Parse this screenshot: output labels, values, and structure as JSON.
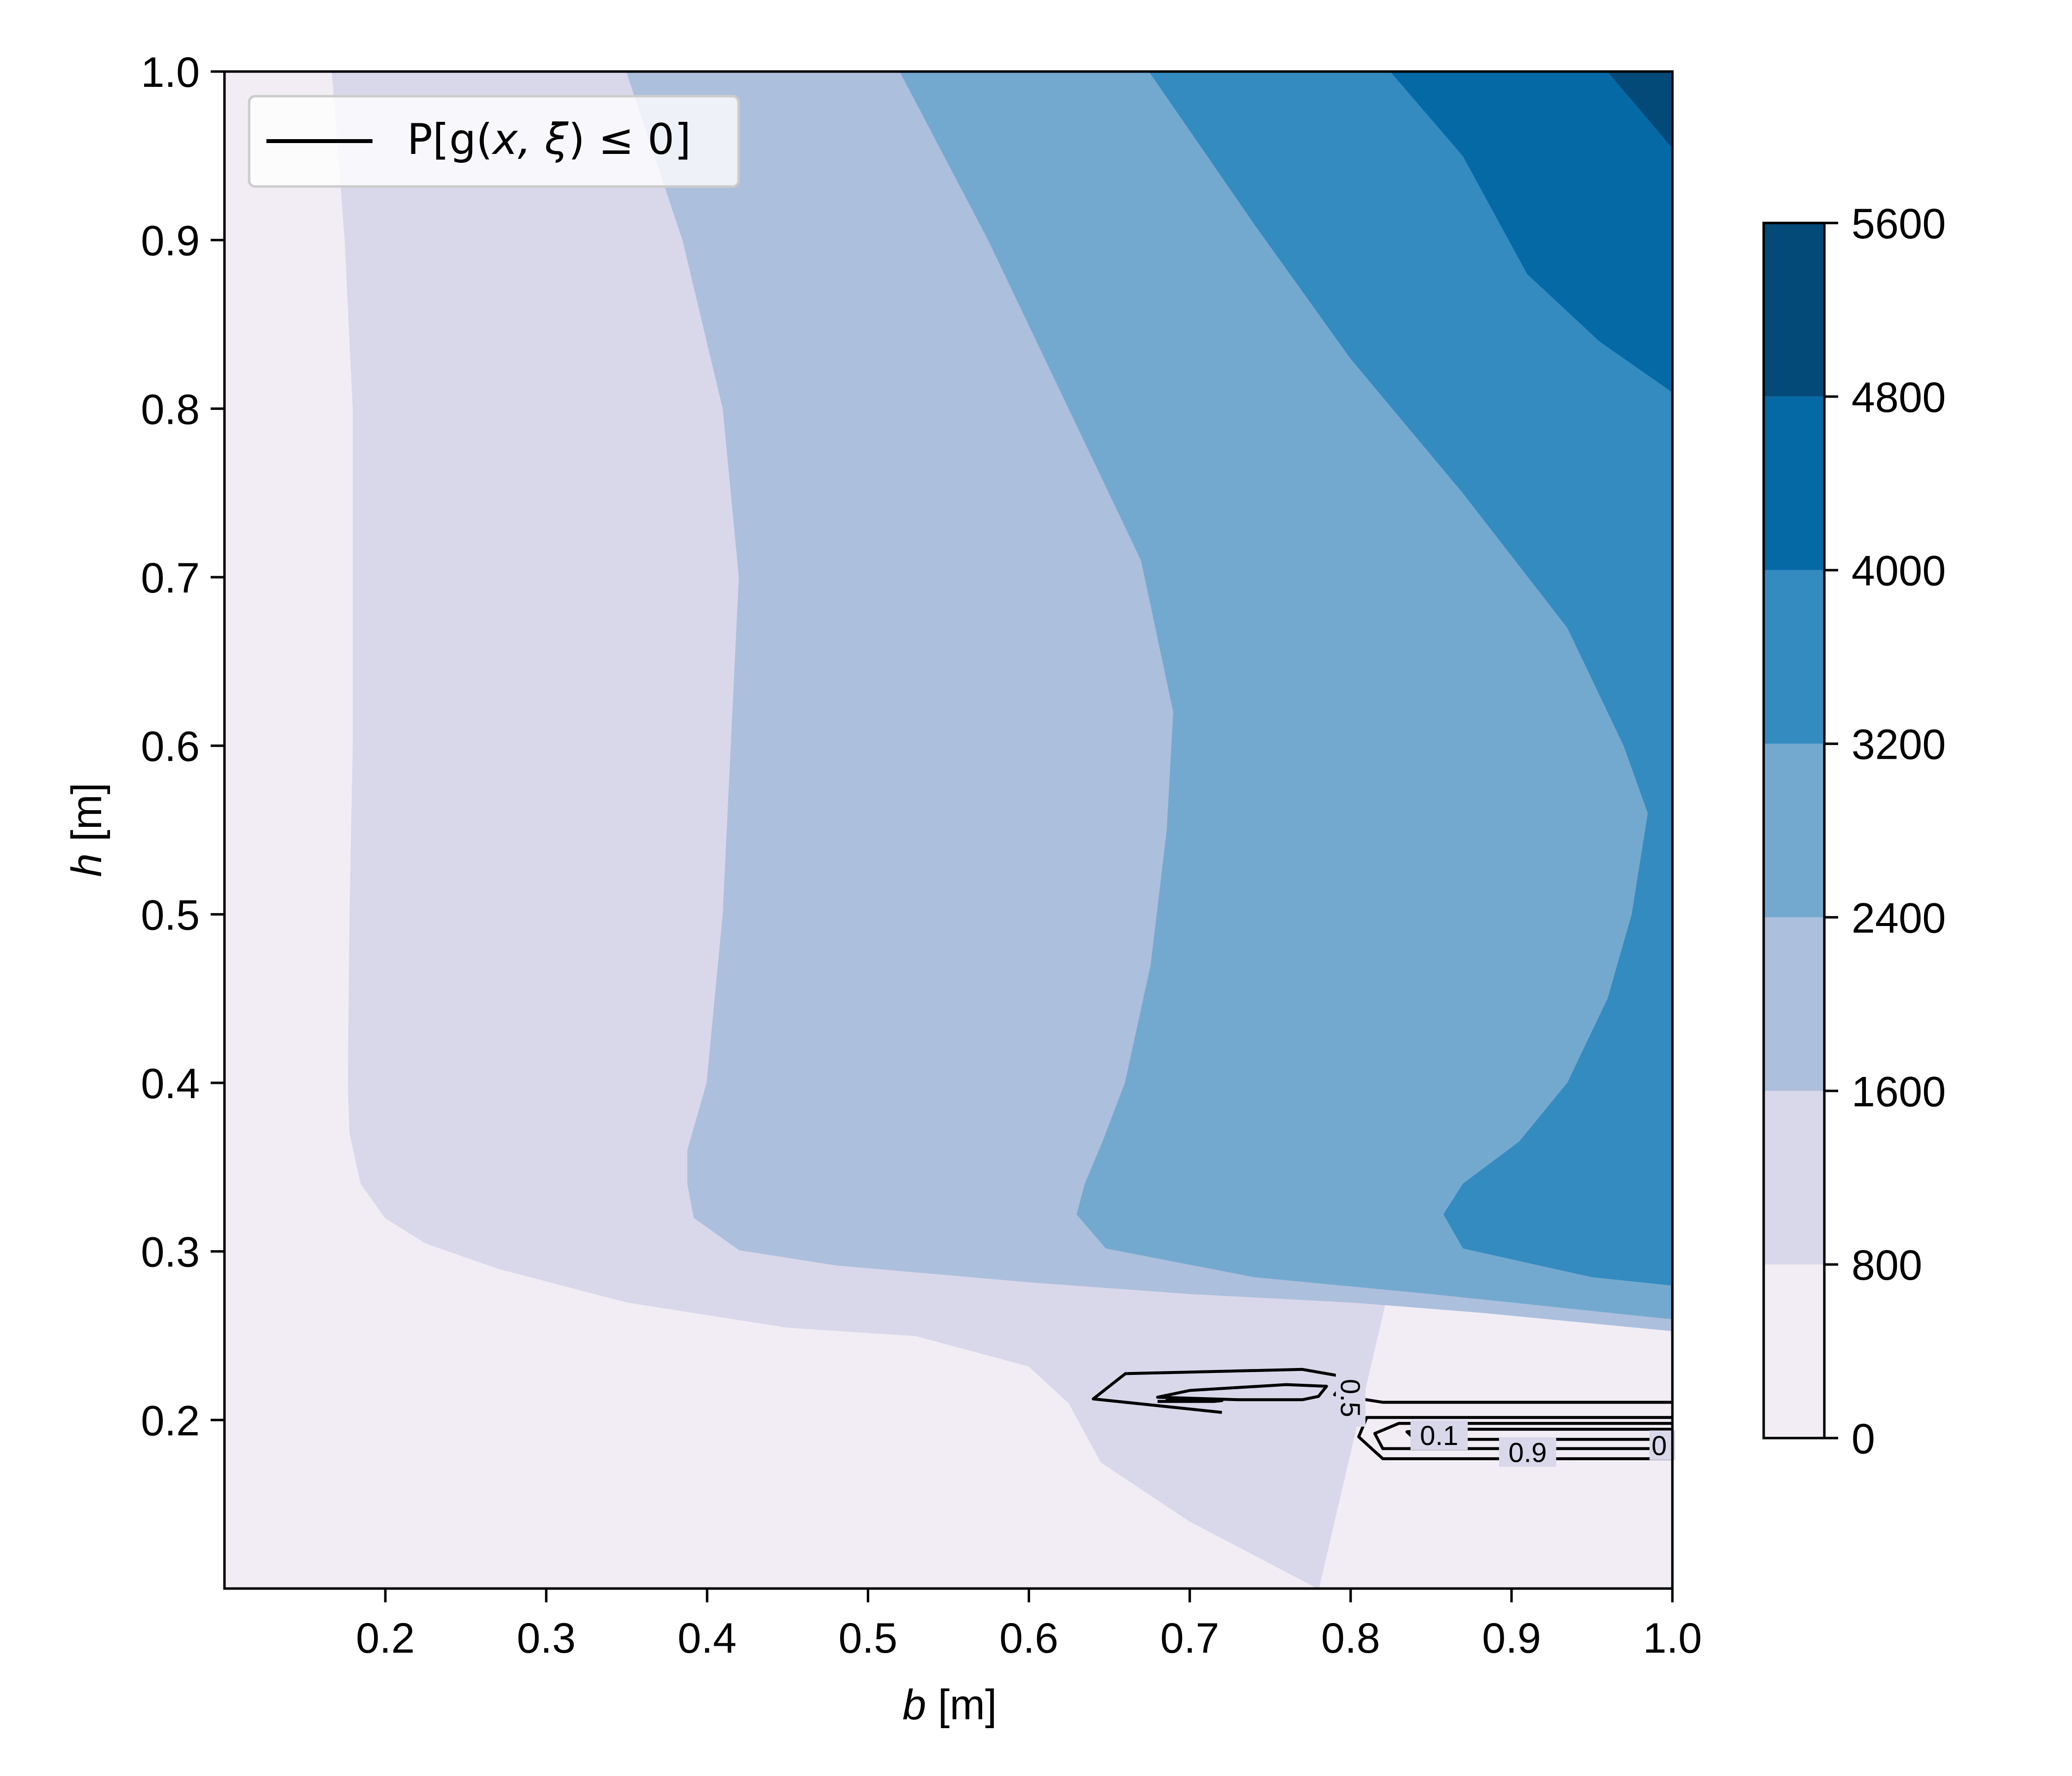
{
  "chart_data": {
    "type": "contourf",
    "xlabel_var": "b",
    "xlabel_unit": "[m]",
    "ylabel_var": "h",
    "ylabel_unit": "[m]",
    "xlim": [
      0.1,
      1.0
    ],
    "ylim": [
      0.1,
      1.0
    ],
    "xticks": [
      0.2,
      0.3,
      0.4,
      0.5,
      0.6,
      0.7,
      0.8,
      0.9,
      1.0
    ],
    "xtick_labels": [
      "0.2",
      "0.3",
      "0.4",
      "0.5",
      "0.6",
      "0.7",
      "0.8",
      "0.9",
      "1.0"
    ],
    "yticks": [
      0.2,
      0.3,
      0.4,
      0.5,
      0.6,
      0.7,
      0.8,
      0.9,
      1.0
    ],
    "ytick_labels": [
      "0.2",
      "0.3",
      "0.4",
      "0.5",
      "0.6",
      "0.7",
      "0.8",
      "0.9",
      "1.0"
    ],
    "colorbar": {
      "levels": [
        0,
        800,
        1600,
        2400,
        3200,
        4000,
        4800,
        5600
      ],
      "labels": [
        "0",
        "800",
        "1600",
        "2400",
        "3200",
        "4000",
        "4800",
        "5600"
      ],
      "colors": [
        "#f2edf5",
        "#d9d8ea",
        "#acbfdd",
        "#74a9cf",
        "#348bc0",
        "#0569a6",
        "#034a78"
      ]
    },
    "contour_band_boundaries": [
      {
        "level": 800,
        "points": [
          [
            0.167,
            1.0
          ],
          [
            0.175,
            0.9
          ],
          [
            0.18,
            0.8
          ],
          [
            0.18,
            0.7
          ],
          [
            0.18,
            0.6
          ],
          [
            0.178,
            0.5
          ],
          [
            0.177,
            0.4
          ],
          [
            0.178,
            0.37
          ],
          [
            0.185,
            0.34
          ],
          [
            0.2,
            0.32
          ],
          [
            0.225,
            0.305
          ],
          [
            0.27,
            0.29
          ],
          [
            0.35,
            0.27
          ],
          [
            0.45,
            0.255
          ],
          [
            0.53,
            0.25
          ],
          [
            0.6,
            0.232
          ],
          [
            0.625,
            0.21
          ],
          [
            0.645,
            0.175
          ],
          [
            0.7,
            0.14
          ],
          [
            0.78,
            0.1
          ]
        ]
      },
      {
        "level": 1600,
        "points": [
          [
            0.35,
            1.0
          ],
          [
            0.385,
            0.9
          ],
          [
            0.41,
            0.8
          ],
          [
            0.42,
            0.7
          ],
          [
            0.415,
            0.6
          ],
          [
            0.41,
            0.5
          ],
          [
            0.4,
            0.4
          ],
          [
            0.388,
            0.36
          ],
          [
            0.388,
            0.34
          ],
          [
            0.392,
            0.32
          ],
          [
            0.42,
            0.301
          ],
          [
            0.48,
            0.292
          ],
          [
            0.6,
            0.282
          ],
          [
            0.7,
            0.275
          ],
          [
            0.8,
            0.27
          ],
          [
            0.88,
            0.264
          ],
          [
            1.0,
            0.253
          ]
        ]
      },
      {
        "level": 2400,
        "points": [
          [
            0.52,
            1.0
          ],
          [
            0.575,
            0.9
          ],
          [
            0.625,
            0.8
          ],
          [
            0.67,
            0.71
          ],
          [
            0.69,
            0.62
          ],
          [
            0.686,
            0.55
          ],
          [
            0.676,
            0.47
          ],
          [
            0.66,
            0.4
          ],
          [
            0.646,
            0.365
          ],
          [
            0.635,
            0.34
          ],
          [
            0.63,
            0.322
          ],
          [
            0.648,
            0.302
          ],
          [
            0.74,
            0.285
          ],
          [
            0.85,
            0.275
          ],
          [
            0.95,
            0.265
          ],
          [
            1.0,
            0.26
          ]
        ]
      },
      {
        "level": 3200,
        "points": [
          [
            0.675,
            1.0
          ],
          [
            0.74,
            0.91
          ],
          [
            0.8,
            0.83
          ],
          [
            0.87,
            0.75
          ],
          [
            0.935,
            0.67
          ],
          [
            0.97,
            0.6
          ],
          [
            0.985,
            0.56
          ],
          [
            0.975,
            0.5
          ],
          [
            0.96,
            0.45
          ],
          [
            0.935,
            0.4
          ],
          [
            0.905,
            0.365
          ],
          [
            0.87,
            0.34
          ],
          [
            0.858,
            0.322
          ],
          [
            0.87,
            0.302
          ],
          [
            0.95,
            0.285
          ],
          [
            1.0,
            0.28
          ]
        ]
      },
      {
        "level": 4000,
        "points": [
          [
            0.825,
            1.0
          ],
          [
            0.87,
            0.95
          ],
          [
            0.91,
            0.88
          ],
          [
            0.955,
            0.84
          ],
          [
            1.0,
            0.81
          ]
        ]
      },
      {
        "level": 4800,
        "points": [
          [
            0.96,
            1.0
          ],
          [
            1.0,
            0.955
          ]
        ]
      }
    ],
    "failure_probability_contours": [
      {
        "level": 0.5,
        "label": "0.5",
        "points": [
          [
            0.72,
            0.2045
          ],
          [
            0.64,
            0.2125
          ],
          [
            0.66,
            0.2275
          ],
          [
            0.77,
            0.23
          ],
          [
            0.8,
            0.225
          ],
          [
            0.79,
            0.215
          ],
          [
            0.82,
            0.2105
          ],
          [
            1.0,
            0.2105
          ]
        ]
      },
      {
        "level": 0.5,
        "label": "",
        "points": [
          [
            0.73,
            0.212
          ],
          [
            0.68,
            0.2135
          ],
          [
            0.7,
            0.2175
          ],
          [
            0.76,
            0.221
          ],
          [
            0.785,
            0.22
          ],
          [
            0.78,
            0.214
          ],
          [
            0.77,
            0.212
          ],
          [
            0.73,
            0.212
          ]
        ]
      },
      {
        "level": 0.5,
        "label": "",
        "points": [
          [
            1.0,
            0.177
          ],
          [
            0.82,
            0.177
          ],
          [
            0.805,
            0.19
          ],
          [
            0.81,
            0.2015
          ],
          [
            1.0,
            0.2015
          ]
        ]
      },
      {
        "level": 0.9,
        "label": "0.9",
        "points": [
          [
            1.0,
            0.183
          ],
          [
            0.82,
            0.183
          ],
          [
            0.815,
            0.192
          ],
          [
            0.83,
            0.198
          ],
          [
            1.0,
            0.198
          ]
        ]
      },
      {
        "level": 0.1,
        "label": "0.1",
        "points": [
          [
            1.0,
            0.1885
          ],
          [
            0.84,
            0.1885
          ],
          [
            0.835,
            0.193
          ],
          [
            0.86,
            0.1945
          ],
          [
            1.0,
            0.1945
          ]
        ]
      },
      {
        "level": 0.1,
        "label": "",
        "points": [
          [
            0.68,
            0.211
          ],
          [
            0.715,
            0.211
          ],
          [
            0.72,
            0.2115
          ],
          [
            0.685,
            0.2115
          ]
        ]
      }
    ],
    "contour_label_texts": [
      "0.5",
      "0.1",
      "0.9",
      "0"
    ],
    "legend": {
      "label_p": "P",
      "label_g": "g",
      "label_args": "x, ξ",
      "label_rel": "≤ 0",
      "placement": "upper-left"
    }
  }
}
